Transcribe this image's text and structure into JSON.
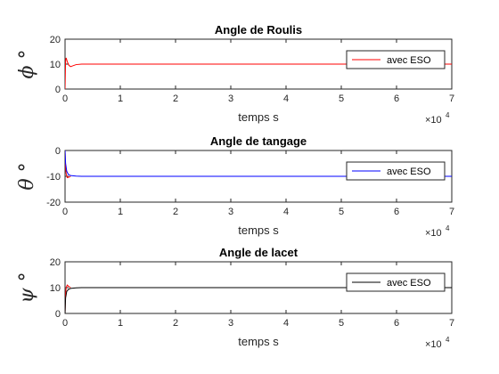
{
  "chart_data": [
    {
      "type": "line",
      "title": "Angle de Roulis",
      "xlabel": "temps s",
      "ylabel": "ϕ °",
      "xlim": [
        0,
        70000
      ],
      "ylim": [
        0,
        20
      ],
      "x_ticks": [
        0,
        1,
        2,
        3,
        4,
        5,
        6,
        7
      ],
      "y_ticks": [
        0,
        10,
        20
      ],
      "x_multiplier": "×10",
      "x_exponent": "4",
      "legend_placement": "top-right",
      "series": [
        {
          "name": "avec ESO",
          "color": "#ff0000",
          "x": [
            0,
            100,
            200,
            400,
            700,
            1000,
            1500,
            2000,
            3000,
            5000,
            10000,
            20000,
            50000,
            70000
          ],
          "y": [
            0,
            11.5,
            12.5,
            11.0,
            9.5,
            9.0,
            9.4,
            9.8,
            10.0,
            10.0,
            10.0,
            10.0,
            10.0,
            10.0
          ]
        }
      ]
    },
    {
      "type": "line",
      "title": "Angle de tangage",
      "xlabel": "temps s",
      "ylabel": "θ °",
      "xlim": [
        0,
        70000
      ],
      "ylim": [
        -20,
        0
      ],
      "x_ticks": [
        0,
        1,
        2,
        3,
        4,
        5,
        6,
        7
      ],
      "y_ticks": [
        -20,
        -10,
        0
      ],
      "x_multiplier": "×10",
      "x_exponent": "4",
      "legend_placement": "top-right",
      "series": [
        {
          "name": "avec ESO",
          "color": "#0000ff",
          "x": [
            0,
            100,
            300,
            600,
            1000,
            2000,
            3000,
            5000,
            10000,
            20000,
            50000,
            70000
          ],
          "y": [
            0,
            -5,
            -8,
            -9.3,
            -9.7,
            -9.9,
            -10.0,
            -10.0,
            -10.0,
            -10.0,
            -10.0,
            -10.0
          ]
        },
        {
          "name": "",
          "color": "#ff0000",
          "x": [
            0,
            80,
            200,
            400,
            700,
            1000
          ],
          "y": [
            0,
            -6,
            -9,
            -10.5,
            -10.3,
            -10.0
          ]
        }
      ]
    },
    {
      "type": "line",
      "title": "Angle de lacet",
      "xlabel": "temps s",
      "ylabel": "ψ °",
      "xlim": [
        0,
        70000
      ],
      "ylim": [
        0,
        20
      ],
      "x_ticks": [
        0,
        1,
        2,
        3,
        4,
        5,
        6,
        7
      ],
      "y_ticks": [
        0,
        10,
        20
      ],
      "x_multiplier": "×10",
      "x_exponent": "4",
      "legend_placement": "top-right",
      "series": [
        {
          "name": "avec ESO",
          "color": "#000000",
          "x": [
            0,
            100,
            300,
            600,
            1000,
            2000,
            3000,
            5000,
            10000,
            20000,
            50000,
            70000
          ],
          "y": [
            0,
            6,
            8.5,
            9.3,
            9.7,
            9.9,
            10.0,
            10.0,
            10.0,
            10.0,
            10.0,
            10.0
          ]
        },
        {
          "name": "",
          "color": "#ff0000",
          "x": [
            0,
            80,
            200,
            400,
            700,
            1000
          ],
          "y": [
            0,
            7,
            10,
            11,
            10.4,
            10.0
          ]
        }
      ]
    }
  ]
}
